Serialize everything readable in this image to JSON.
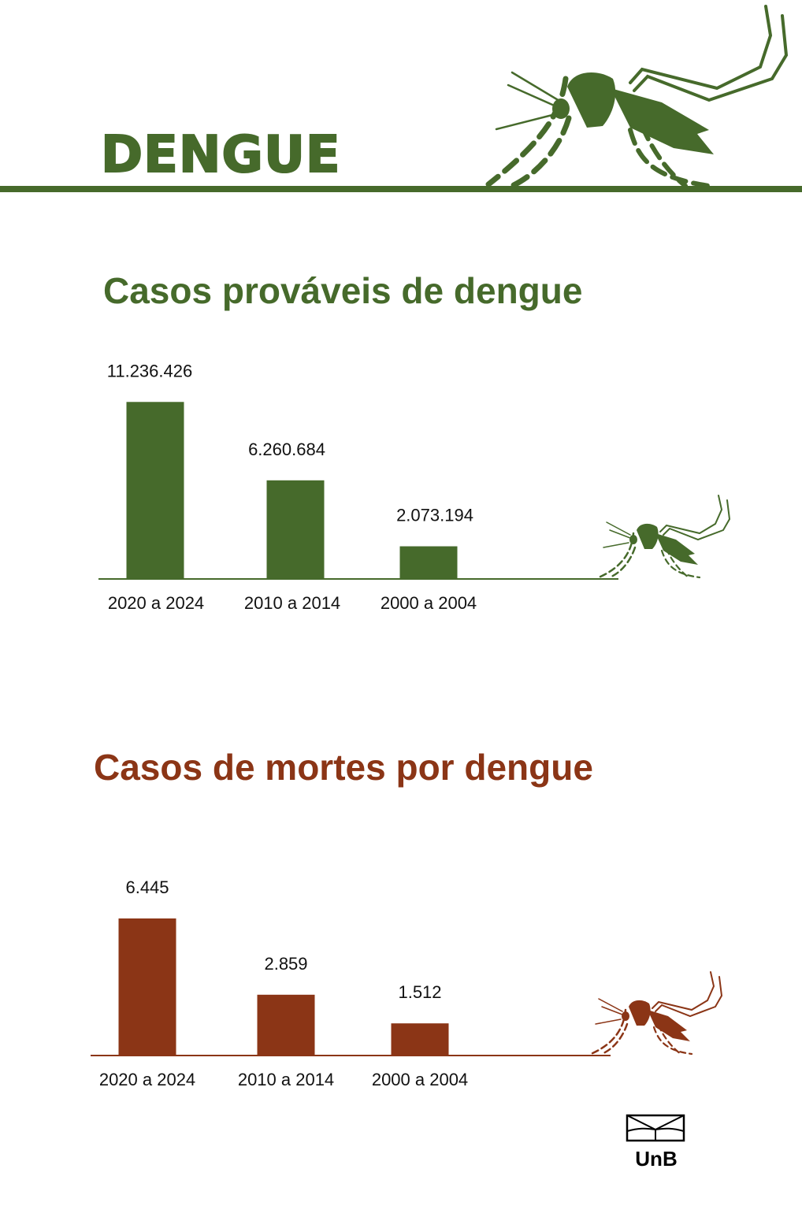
{
  "header": {
    "title": "DENGUE"
  },
  "colors": {
    "green": "#466a2b",
    "red": "#8b3516"
  },
  "chart_data": [
    {
      "type": "bar",
      "title": "Casos prováveis de dengue",
      "categories": [
        "2020 a 2024",
        "2010 a 2014",
        "2000 a 2004"
      ],
      "values": [
        11236426,
        6260684,
        2073194
      ],
      "value_labels": [
        "11.236.426",
        "6.260.684",
        "2.073.194"
      ],
      "color": "#466a2b",
      "ylim": [
        0,
        12600000
      ],
      "grid": false,
      "legend": "none"
    },
    {
      "type": "bar",
      "title": "Casos de mortes por dengue",
      "categories": [
        "2020 a 2024",
        "2010 a 2014",
        "2000 a 2004"
      ],
      "values": [
        6445,
        2859,
        1512
      ],
      "value_labels": [
        "6.445",
        "2.859",
        "1.512"
      ],
      "color": "#8b3516",
      "ylim": [
        0,
        7260
      ],
      "grid": false,
      "legend": "none"
    }
  ],
  "logo": {
    "text": "UnB"
  },
  "icons": [
    "mosquito-icon",
    "unb-logo-icon"
  ]
}
